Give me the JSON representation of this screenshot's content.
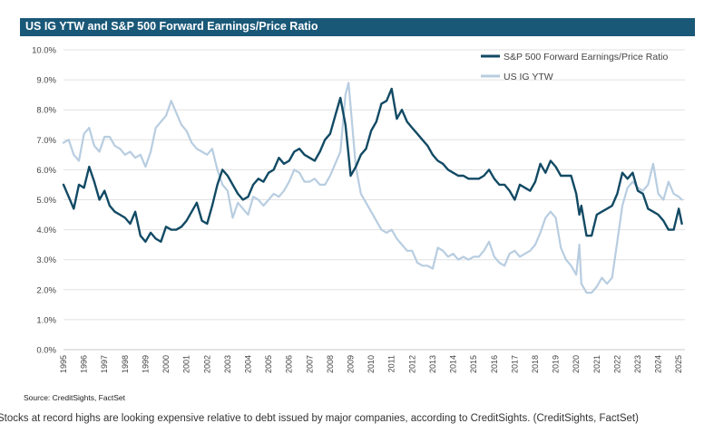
{
  "header": {
    "title": "US IG YTW and S&P 500 Forward Earnings/Price Ratio"
  },
  "footer": {
    "source": "Source: CreditSights, FactSet",
    "caption": "Stocks at record highs are looking expensive relative to debt issued by major companies, according to CreditSights. (CreditSights, FactSet)"
  },
  "colors": {
    "title_bar": "#1a5878",
    "series_sp500": "#124a64",
    "series_ig": "#b8cde0",
    "grid": "#e1e1e1"
  },
  "chart_data": {
    "type": "line",
    "title": "US IG YTW and S&P 500 Forward Earnings/Price Ratio",
    "xlabel": "",
    "ylabel": "",
    "xlim": [
      1995,
      2025.3
    ],
    "ylim": [
      0,
      10
    ],
    "y_ticks": [
      "0.0%",
      "1.0%",
      "2.0%",
      "3.0%",
      "4.0%",
      "5.0%",
      "6.0%",
      "7.0%",
      "8.0%",
      "9.0%",
      "10.0%"
    ],
    "x_ticks": [
      "1995",
      "1996",
      "1997",
      "1998",
      "1999",
      "2000",
      "2001",
      "2002",
      "2003",
      "2004",
      "2005",
      "2006",
      "2007",
      "2008",
      "2009",
      "2010",
      "2011",
      "2012",
      "2013",
      "2014",
      "2015",
      "2016",
      "2017",
      "2018",
      "2019",
      "2020",
      "2021",
      "2022",
      "2023",
      "2024",
      "2025"
    ],
    "grid": "horizontal",
    "legend_position": "top-right",
    "series": [
      {
        "name": "S&P 500 Forward Earnings/Price Ratio",
        "color": "#124a64",
        "x": [
          1995.0,
          1995.25,
          1995.5,
          1995.75,
          1996.0,
          1996.25,
          1996.5,
          1996.75,
          1997.0,
          1997.25,
          1997.5,
          1997.75,
          1998.0,
          1998.25,
          1998.5,
          1998.75,
          1999.0,
          1999.25,
          1999.5,
          1999.75,
          2000.0,
          2000.25,
          2000.5,
          2000.75,
          2001.0,
          2001.25,
          2001.5,
          2001.75,
          2002.0,
          2002.25,
          2002.5,
          2002.75,
          2003.0,
          2003.25,
          2003.5,
          2003.75,
          2004.0,
          2004.25,
          2004.5,
          2004.75,
          2005.0,
          2005.25,
          2005.5,
          2005.75,
          2006.0,
          2006.25,
          2006.5,
          2006.75,
          2007.0,
          2007.25,
          2007.5,
          2007.75,
          2008.0,
          2008.25,
          2008.5,
          2008.75,
          2008.9,
          2009.0,
          2009.25,
          2009.5,
          2009.75,
          2010.0,
          2010.25,
          2010.5,
          2010.75,
          2011.0,
          2011.25,
          2011.5,
          2011.75,
          2012.0,
          2012.25,
          2012.5,
          2012.75,
          2013.0,
          2013.25,
          2013.5,
          2013.75,
          2014.0,
          2014.25,
          2014.5,
          2014.75,
          2015.0,
          2015.25,
          2015.5,
          2015.75,
          2016.0,
          2016.25,
          2016.5,
          2016.75,
          2017.0,
          2017.25,
          2017.5,
          2017.75,
          2018.0,
          2018.25,
          2018.5,
          2018.75,
          2019.0,
          2019.25,
          2019.5,
          2019.75,
          2020.0,
          2020.15,
          2020.25,
          2020.5,
          2020.75,
          2021.0,
          2021.25,
          2021.5,
          2021.75,
          2022.0,
          2022.25,
          2022.5,
          2022.75,
          2023.0,
          2023.25,
          2023.5,
          2023.75,
          2024.0,
          2024.25,
          2024.5,
          2024.75,
          2025.0,
          2025.15
        ],
        "y": [
          5.5,
          5.1,
          4.7,
          5.5,
          5.4,
          6.1,
          5.6,
          5.0,
          5.3,
          4.8,
          4.6,
          4.5,
          4.4,
          4.2,
          4.6,
          3.8,
          3.6,
          3.9,
          3.7,
          3.6,
          4.1,
          4.0,
          4.0,
          4.1,
          4.3,
          4.6,
          4.9,
          4.3,
          4.2,
          4.8,
          5.5,
          6.0,
          5.8,
          5.5,
          5.2,
          5.0,
          5.1,
          5.5,
          5.7,
          5.6,
          5.9,
          6.0,
          6.4,
          6.2,
          6.3,
          6.6,
          6.7,
          6.5,
          6.4,
          6.3,
          6.6,
          7.0,
          7.2,
          7.8,
          8.4,
          7.5,
          6.5,
          5.8,
          6.1,
          6.5,
          6.7,
          7.3,
          7.6,
          8.2,
          8.3,
          8.7,
          7.7,
          8.0,
          7.6,
          7.4,
          7.2,
          7.0,
          6.8,
          6.5,
          6.3,
          6.2,
          6.0,
          5.9,
          5.8,
          5.8,
          5.7,
          5.7,
          5.7,
          5.8,
          6.0,
          5.7,
          5.5,
          5.5,
          5.3,
          5.0,
          5.5,
          5.4,
          5.3,
          5.6,
          6.2,
          5.9,
          6.3,
          6.1,
          5.8,
          5.8,
          5.8,
          5.2,
          4.5,
          4.8,
          3.8,
          3.8,
          4.5,
          4.6,
          4.7,
          4.8,
          5.2,
          5.9,
          5.7,
          5.9,
          5.3,
          5.2,
          4.7,
          4.6,
          4.5,
          4.3,
          4.0,
          4.0,
          4.7,
          4.2
        ]
      },
      {
        "name": "US IG YTW",
        "color": "#b8cde0",
        "x": [
          1995.0,
          1995.25,
          1995.5,
          1995.75,
          1996.0,
          1996.25,
          1996.5,
          1996.75,
          1997.0,
          1997.25,
          1997.5,
          1997.75,
          1998.0,
          1998.25,
          1998.5,
          1998.75,
          1999.0,
          1999.25,
          1999.5,
          1999.75,
          2000.0,
          2000.25,
          2000.5,
          2000.75,
          2001.0,
          2001.25,
          2001.5,
          2001.75,
          2002.0,
          2002.25,
          2002.5,
          2002.75,
          2003.0,
          2003.25,
          2003.5,
          2003.75,
          2004.0,
          2004.25,
          2004.5,
          2004.75,
          2005.0,
          2005.25,
          2005.5,
          2005.75,
          2006.0,
          2006.25,
          2006.5,
          2006.75,
          2007.0,
          2007.25,
          2007.5,
          2007.75,
          2008.0,
          2008.25,
          2008.5,
          2008.75,
          2008.9,
          2009.0,
          2009.25,
          2009.5,
          2009.75,
          2010.0,
          2010.25,
          2010.5,
          2010.75,
          2011.0,
          2011.25,
          2011.5,
          2011.75,
          2012.0,
          2012.25,
          2012.5,
          2012.75,
          2013.0,
          2013.25,
          2013.5,
          2013.75,
          2014.0,
          2014.25,
          2014.5,
          2014.75,
          2015.0,
          2015.25,
          2015.5,
          2015.75,
          2016.0,
          2016.25,
          2016.5,
          2016.75,
          2017.0,
          2017.25,
          2017.5,
          2017.75,
          2018.0,
          2018.25,
          2018.5,
          2018.75,
          2019.0,
          2019.25,
          2019.5,
          2019.75,
          2020.0,
          2020.15,
          2020.25,
          2020.5,
          2020.75,
          2021.0,
          2021.25,
          2021.5,
          2021.75,
          2022.0,
          2022.25,
          2022.5,
          2022.75,
          2023.0,
          2023.25,
          2023.5,
          2023.75,
          2024.0,
          2024.25,
          2024.5,
          2024.75,
          2025.0,
          2025.15
        ],
        "y": [
          6.9,
          7.0,
          6.5,
          6.3,
          7.2,
          7.4,
          6.8,
          6.6,
          7.1,
          7.1,
          6.8,
          6.7,
          6.5,
          6.6,
          6.4,
          6.5,
          6.1,
          6.6,
          7.4,
          7.6,
          7.8,
          8.3,
          7.9,
          7.5,
          7.3,
          6.9,
          6.7,
          6.6,
          6.5,
          6.7,
          6.0,
          5.5,
          5.3,
          4.4,
          4.9,
          4.7,
          4.5,
          5.1,
          5.0,
          4.8,
          5.0,
          5.2,
          5.1,
          5.3,
          5.6,
          6.0,
          5.9,
          5.6,
          5.6,
          5.7,
          5.5,
          5.5,
          5.8,
          6.2,
          6.6,
          8.5,
          8.9,
          8.1,
          6.1,
          5.2,
          4.9,
          4.6,
          4.3,
          4.0,
          3.9,
          4.0,
          3.7,
          3.5,
          3.3,
          3.3,
          2.9,
          2.8,
          2.8,
          2.7,
          3.4,
          3.3,
          3.1,
          3.2,
          3.0,
          3.1,
          3.0,
          3.1,
          3.1,
          3.3,
          3.6,
          3.1,
          2.9,
          2.8,
          3.2,
          3.3,
          3.1,
          3.2,
          3.3,
          3.5,
          3.9,
          4.4,
          4.6,
          4.4,
          3.4,
          3.0,
          2.8,
          2.5,
          3.5,
          2.2,
          1.9,
          1.9,
          2.1,
          2.4,
          2.2,
          2.4,
          3.6,
          4.8,
          5.4,
          5.6,
          5.4,
          5.3,
          5.5,
          6.2,
          5.2,
          5.0,
          5.6,
          5.2,
          5.1,
          5.0
        ]
      }
    ]
  }
}
